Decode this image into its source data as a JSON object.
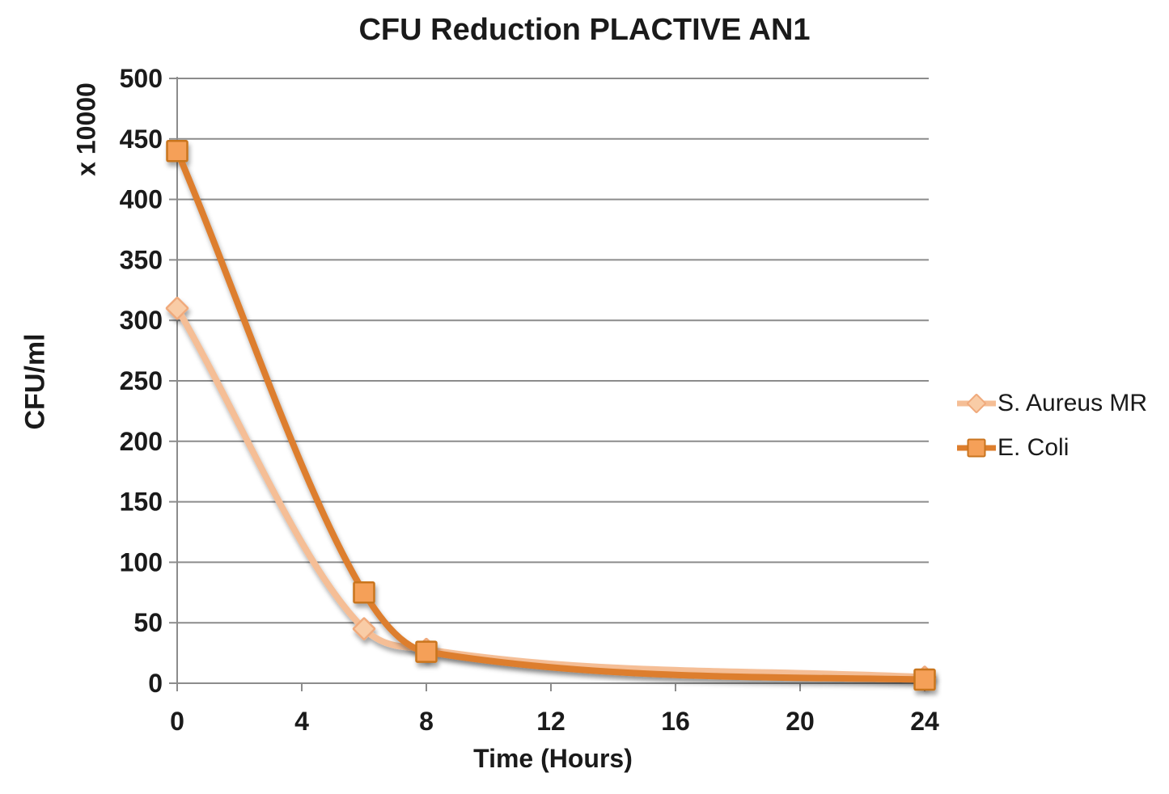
{
  "chart_data": {
    "type": "line",
    "title": "CFU Reduction PLACTIVE AN1",
    "xlabel": "Time (Hours)",
    "ylabel": "CFU/ml",
    "y_multiplier_label": "x 10000",
    "x": [
      0,
      6,
      8,
      24
    ],
    "series": [
      {
        "name": "S. Aureus MR",
        "values": [
          310,
          45,
          28,
          5
        ],
        "line_color": "#F5BE96",
        "marker": "diamond",
        "marker_fill": "#F9CCA6",
        "marker_stroke": "#F0AA7C"
      },
      {
        "name": "E. Coli",
        "values": [
          440,
          75,
          26,
          3
        ],
        "line_color": "#DD7E2D",
        "marker": "square",
        "marker_fill": "#F5A058",
        "marker_stroke": "#C9741F"
      }
    ],
    "xlim": [
      0,
      24
    ],
    "ylim": [
      0,
      500
    ],
    "x_ticks": [
      0,
      4,
      8,
      12,
      16,
      20,
      24
    ],
    "y_ticks": [
      0,
      50,
      100,
      150,
      200,
      250,
      300,
      350,
      400,
      450,
      500
    ],
    "grid": true,
    "legend_position": "right",
    "gridline_color": "#8C8C8C",
    "axis_color": "#8C8C8C",
    "text_color": "#1a1a1a"
  }
}
